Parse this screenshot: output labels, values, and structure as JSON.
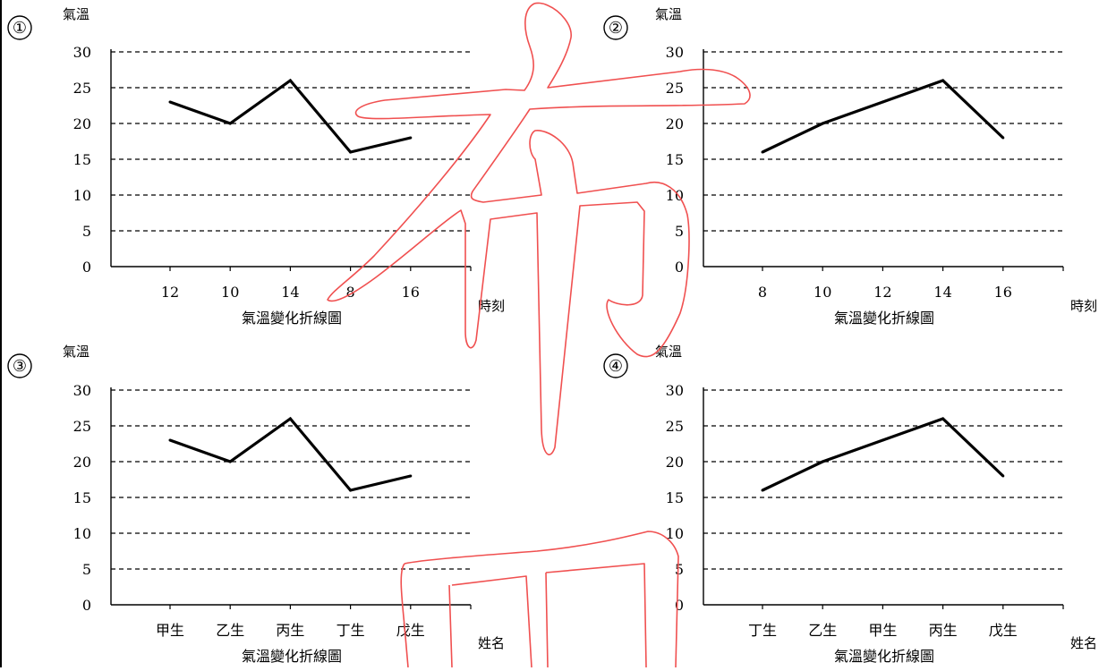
{
  "panels": [
    {
      "marker": "①",
      "ylabel": "氣溫",
      "caption": "氣溫變化折線圖"
    },
    {
      "marker": "②",
      "ylabel": "氣溫",
      "caption": "氣溫變化折線圖"
    },
    {
      "marker": "③",
      "ylabel": "氣溫",
      "caption": "氣溫變化折線圖"
    },
    {
      "marker": "④",
      "ylabel": "氣溫",
      "caption": "氣溫變化折線圖"
    }
  ],
  "watermark": {
    "glyph_top": "布",
    "glyph_bottom": "田",
    "stroke_color": "#f05050"
  },
  "chart_data": [
    {
      "type": "line",
      "categories": [
        "12",
        "10",
        "14",
        "8",
        "16"
      ],
      "series": [
        {
          "values": [
            23,
            20,
            26,
            16,
            18
          ]
        }
      ],
      "xlabel": "時刻",
      "ylabel": "氣溫",
      "yticks": [
        0,
        5,
        10,
        15,
        20,
        25,
        30
      ],
      "ylim": [
        0,
        30
      ],
      "grid": "dashed-horizontal",
      "line_color": "#000000"
    },
    {
      "type": "line",
      "categories": [
        "8",
        "10",
        "12",
        "14",
        "16"
      ],
      "series": [
        {
          "values": [
            16,
            20,
            23,
            26,
            18
          ]
        }
      ],
      "xlabel": "時刻",
      "ylabel": "氣溫",
      "yticks": [
        0,
        5,
        10,
        15,
        20,
        25,
        30
      ],
      "ylim": [
        0,
        30
      ],
      "grid": "dashed-horizontal",
      "line_color": "#000000"
    },
    {
      "type": "line",
      "categories": [
        "甲生",
        "乙生",
        "丙生",
        "丁生",
        "戊生"
      ],
      "series": [
        {
          "values": [
            23,
            20,
            26,
            16,
            18
          ]
        }
      ],
      "xlabel": "姓名",
      "ylabel": "氣溫",
      "yticks": [
        0,
        5,
        10,
        15,
        20,
        25,
        30
      ],
      "ylim": [
        0,
        30
      ],
      "grid": "dashed-horizontal",
      "line_color": "#000000"
    },
    {
      "type": "line",
      "categories": [
        "丁生",
        "乙生",
        "甲生",
        "丙生",
        "戊生"
      ],
      "series": [
        {
          "values": [
            16,
            20,
            23,
            26,
            18
          ]
        }
      ],
      "xlabel": "姓名",
      "ylabel": "氣溫",
      "yticks": [
        0,
        5,
        10,
        15,
        20,
        25,
        30
      ],
      "ylim": [
        0,
        30
      ],
      "grid": "dashed-horizontal",
      "line_color": "#000000"
    }
  ]
}
